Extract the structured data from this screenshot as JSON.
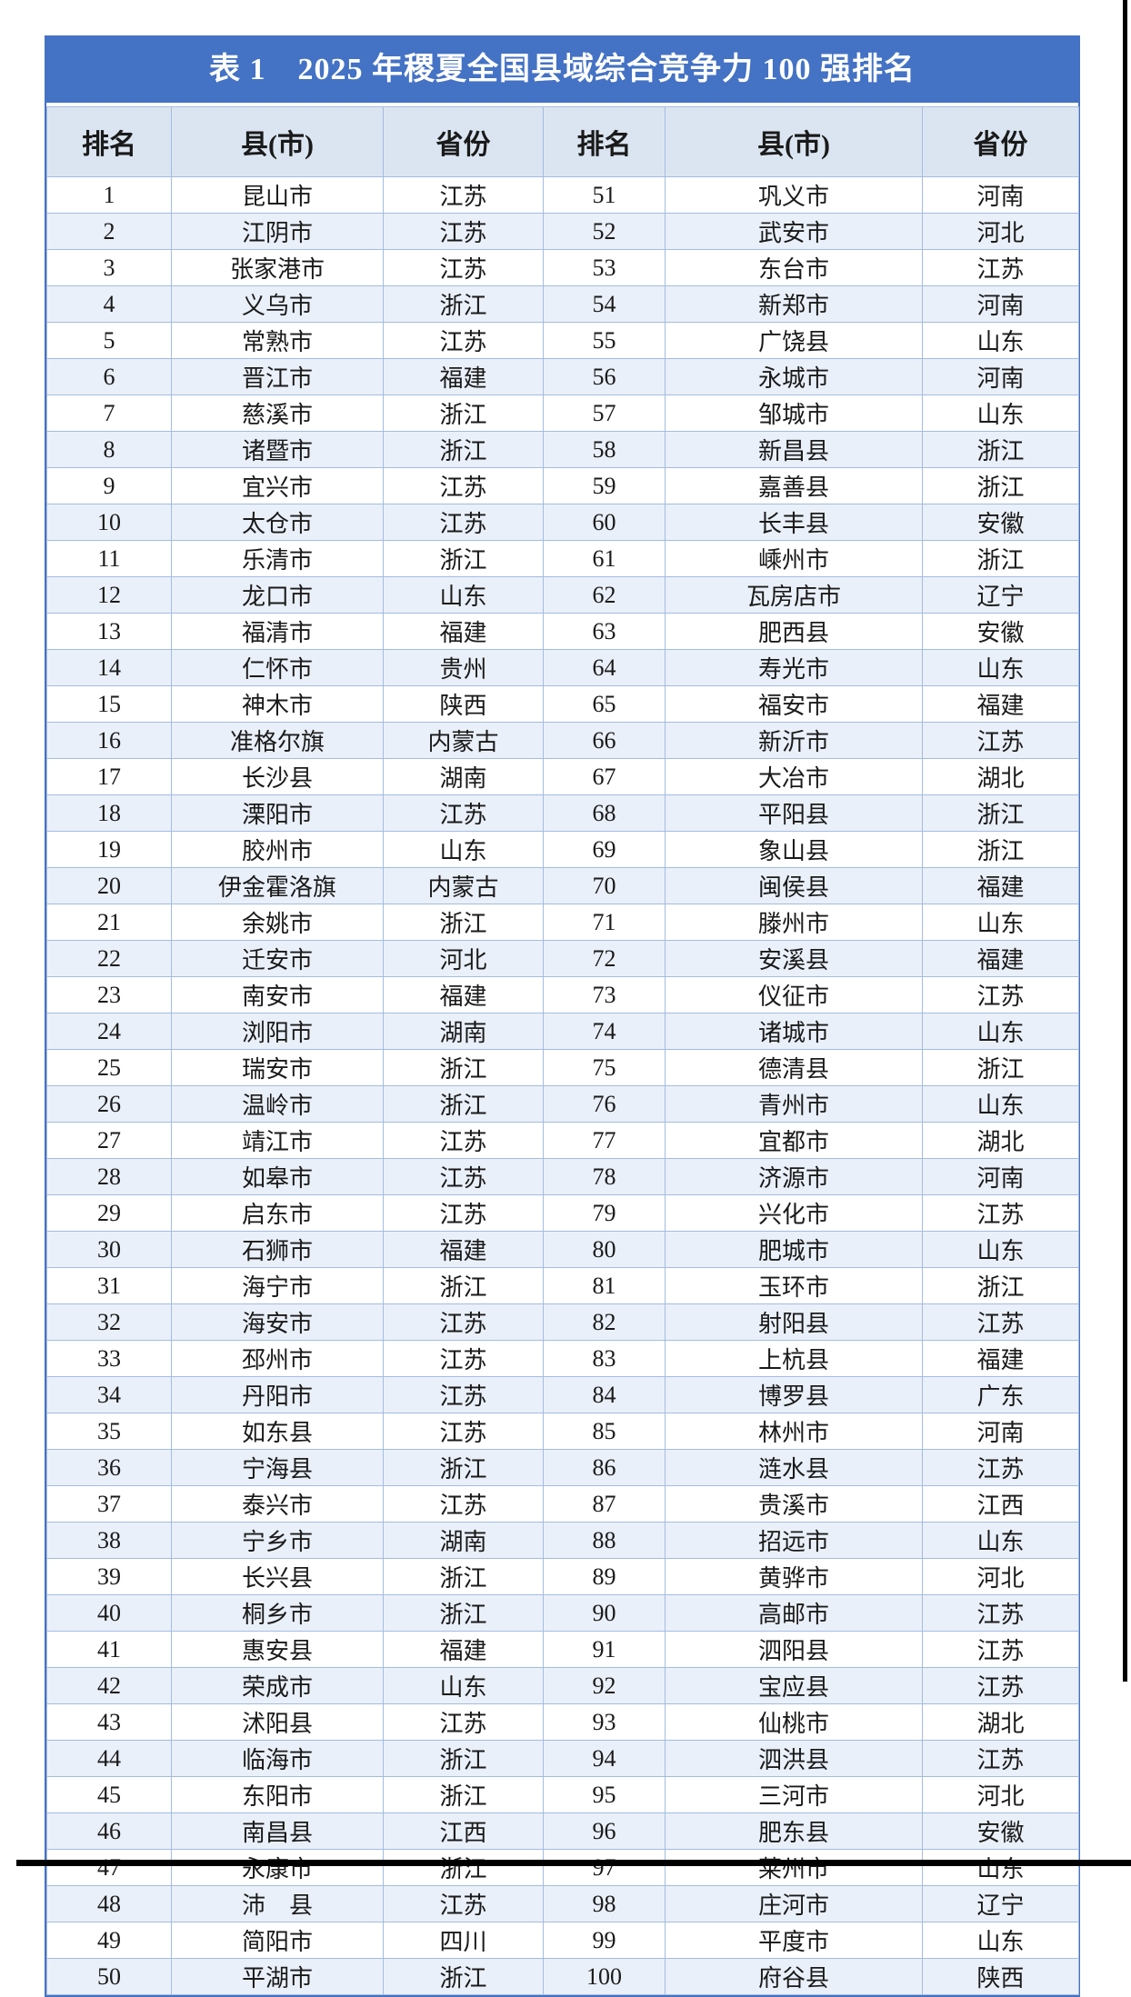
{
  "colors": {
    "title_bar": "#4472C4",
    "header_bg": "#DBE5F1",
    "row_alt_bg": "#EAF0F9",
    "grid_line": "#A3BCE2",
    "outer_border": "#4472C4",
    "title_text": "#FFFFFF",
    "body_text": "#1A1A1A"
  },
  "table": {
    "title": "表 1　2025 年稷夏全国县域综合竞争力 100 强排名",
    "columns": [
      "排名",
      "县(市)",
      "省份",
      "排名",
      "县(市)",
      "省份"
    ],
    "rows": [
      {
        "r1": "1",
        "c1": "昆山市",
        "p1": "江苏",
        "r2": "51",
        "c2": "巩义市",
        "p2": "河南"
      },
      {
        "r1": "2",
        "c1": "江阴市",
        "p1": "江苏",
        "r2": "52",
        "c2": "武安市",
        "p2": "河北"
      },
      {
        "r1": "3",
        "c1": "张家港市",
        "p1": "江苏",
        "r2": "53",
        "c2": "东台市",
        "p2": "江苏"
      },
      {
        "r1": "4",
        "c1": "义乌市",
        "p1": "浙江",
        "r2": "54",
        "c2": "新郑市",
        "p2": "河南"
      },
      {
        "r1": "5",
        "c1": "常熟市",
        "p1": "江苏",
        "r2": "55",
        "c2": "广饶县",
        "p2": "山东"
      },
      {
        "r1": "6",
        "c1": "晋江市",
        "p1": "福建",
        "r2": "56",
        "c2": "永城市",
        "p2": "河南"
      },
      {
        "r1": "7",
        "c1": "慈溪市",
        "p1": "浙江",
        "r2": "57",
        "c2": "邹城市",
        "p2": "山东"
      },
      {
        "r1": "8",
        "c1": "诸暨市",
        "p1": "浙江",
        "r2": "58",
        "c2": "新昌县",
        "p2": "浙江"
      },
      {
        "r1": "9",
        "c1": "宜兴市",
        "p1": "江苏",
        "r2": "59",
        "c2": "嘉善县",
        "p2": "浙江"
      },
      {
        "r1": "10",
        "c1": "太仓市",
        "p1": "江苏",
        "r2": "60",
        "c2": "长丰县",
        "p2": "安徽"
      },
      {
        "r1": "11",
        "c1": "乐清市",
        "p1": "浙江",
        "r2": "61",
        "c2": "嵊州市",
        "p2": "浙江"
      },
      {
        "r1": "12",
        "c1": "龙口市",
        "p1": "山东",
        "r2": "62",
        "c2": "瓦房店市",
        "p2": "辽宁"
      },
      {
        "r1": "13",
        "c1": "福清市",
        "p1": "福建",
        "r2": "63",
        "c2": "肥西县",
        "p2": "安徽"
      },
      {
        "r1": "14",
        "c1": "仁怀市",
        "p1": "贵州",
        "r2": "64",
        "c2": "寿光市",
        "p2": "山东"
      },
      {
        "r1": "15",
        "c1": "神木市",
        "p1": "陕西",
        "r2": "65",
        "c2": "福安市",
        "p2": "福建"
      },
      {
        "r1": "16",
        "c1": "准格尔旗",
        "p1": "内蒙古",
        "r2": "66",
        "c2": "新沂市",
        "p2": "江苏"
      },
      {
        "r1": "17",
        "c1": "长沙县",
        "p1": "湖南",
        "r2": "67",
        "c2": "大冶市",
        "p2": "湖北"
      },
      {
        "r1": "18",
        "c1": "溧阳市",
        "p1": "江苏",
        "r2": "68",
        "c2": "平阳县",
        "p2": "浙江"
      },
      {
        "r1": "19",
        "c1": "胶州市",
        "p1": "山东",
        "r2": "69",
        "c2": "象山县",
        "p2": "浙江"
      },
      {
        "r1": "20",
        "c1": "伊金霍洛旗",
        "p1": "内蒙古",
        "r2": "70",
        "c2": "闽侯县",
        "p2": "福建"
      },
      {
        "r1": "21",
        "c1": "余姚市",
        "p1": "浙江",
        "r2": "71",
        "c2": "滕州市",
        "p2": "山东"
      },
      {
        "r1": "22",
        "c1": "迁安市",
        "p1": "河北",
        "r2": "72",
        "c2": "安溪县",
        "p2": "福建"
      },
      {
        "r1": "23",
        "c1": "南安市",
        "p1": "福建",
        "r2": "73",
        "c2": "仪征市",
        "p2": "江苏"
      },
      {
        "r1": "24",
        "c1": "浏阳市",
        "p1": "湖南",
        "r2": "74",
        "c2": "诸城市",
        "p2": "山东"
      },
      {
        "r1": "25",
        "c1": "瑞安市",
        "p1": "浙江",
        "r2": "75",
        "c2": "德清县",
        "p2": "浙江"
      },
      {
        "r1": "26",
        "c1": "温岭市",
        "p1": "浙江",
        "r2": "76",
        "c2": "青州市",
        "p2": "山东"
      },
      {
        "r1": "27",
        "c1": "靖江市",
        "p1": "江苏",
        "r2": "77",
        "c2": "宜都市",
        "p2": "湖北"
      },
      {
        "r1": "28",
        "c1": "如皋市",
        "p1": "江苏",
        "r2": "78",
        "c2": "济源市",
        "p2": "河南"
      },
      {
        "r1": "29",
        "c1": "启东市",
        "p1": "江苏",
        "r2": "79",
        "c2": "兴化市",
        "p2": "江苏"
      },
      {
        "r1": "30",
        "c1": "石狮市",
        "p1": "福建",
        "r2": "80",
        "c2": "肥城市",
        "p2": "山东"
      },
      {
        "r1": "31",
        "c1": "海宁市",
        "p1": "浙江",
        "r2": "81",
        "c2": "玉环市",
        "p2": "浙江"
      },
      {
        "r1": "32",
        "c1": "海安市",
        "p1": "江苏",
        "r2": "82",
        "c2": "射阳县",
        "p2": "江苏"
      },
      {
        "r1": "33",
        "c1": "邳州市",
        "p1": "江苏",
        "r2": "83",
        "c2": "上杭县",
        "p2": "福建"
      },
      {
        "r1": "34",
        "c1": "丹阳市",
        "p1": "江苏",
        "r2": "84",
        "c2": "博罗县",
        "p2": "广东"
      },
      {
        "r1": "35",
        "c1": "如东县",
        "p1": "江苏",
        "r2": "85",
        "c2": "林州市",
        "p2": "河南"
      },
      {
        "r1": "36",
        "c1": "宁海县",
        "p1": "浙江",
        "r2": "86",
        "c2": "涟水县",
        "p2": "江苏"
      },
      {
        "r1": "37",
        "c1": "泰兴市",
        "p1": "江苏",
        "r2": "87",
        "c2": "贵溪市",
        "p2": "江西"
      },
      {
        "r1": "38",
        "c1": "宁乡市",
        "p1": "湖南",
        "r2": "88",
        "c2": "招远市",
        "p2": "山东"
      },
      {
        "r1": "39",
        "c1": "长兴县",
        "p1": "浙江",
        "r2": "89",
        "c2": "黄骅市",
        "p2": "河北"
      },
      {
        "r1": "40",
        "c1": "桐乡市",
        "p1": "浙江",
        "r2": "90",
        "c2": "高邮市",
        "p2": "江苏"
      },
      {
        "r1": "41",
        "c1": "惠安县",
        "p1": "福建",
        "r2": "91",
        "c2": "泗阳县",
        "p2": "江苏"
      },
      {
        "r1": "42",
        "c1": "荣成市",
        "p1": "山东",
        "r2": "92",
        "c2": "宝应县",
        "p2": "江苏"
      },
      {
        "r1": "43",
        "c1": "沭阳县",
        "p1": "江苏",
        "r2": "93",
        "c2": "仙桃市",
        "p2": "湖北"
      },
      {
        "r1": "44",
        "c1": "临海市",
        "p1": "浙江",
        "r2": "94",
        "c2": "泗洪县",
        "p2": "江苏"
      },
      {
        "r1": "45",
        "c1": "东阳市",
        "p1": "浙江",
        "r2": "95",
        "c2": "三河市",
        "p2": "河北"
      },
      {
        "r1": "46",
        "c1": "南昌县",
        "p1": "江西",
        "r2": "96",
        "c2": "肥东县",
        "p2": "安徽"
      },
      {
        "r1": "47",
        "c1": "永康市",
        "p1": "浙江",
        "r2": "97",
        "c2": "莱州市",
        "p2": "山东"
      },
      {
        "r1": "48",
        "c1": "沛　县",
        "p1": "江苏",
        "r2": "98",
        "c2": "庄河市",
        "p2": "辽宁"
      },
      {
        "r1": "49",
        "c1": "简阳市",
        "p1": "四川",
        "r2": "99",
        "c2": "平度市",
        "p2": "山东"
      },
      {
        "r1": "50",
        "c1": "平湖市",
        "p1": "浙江",
        "r2": "100",
        "c2": "府谷县",
        "p2": "陕西"
      }
    ]
  }
}
